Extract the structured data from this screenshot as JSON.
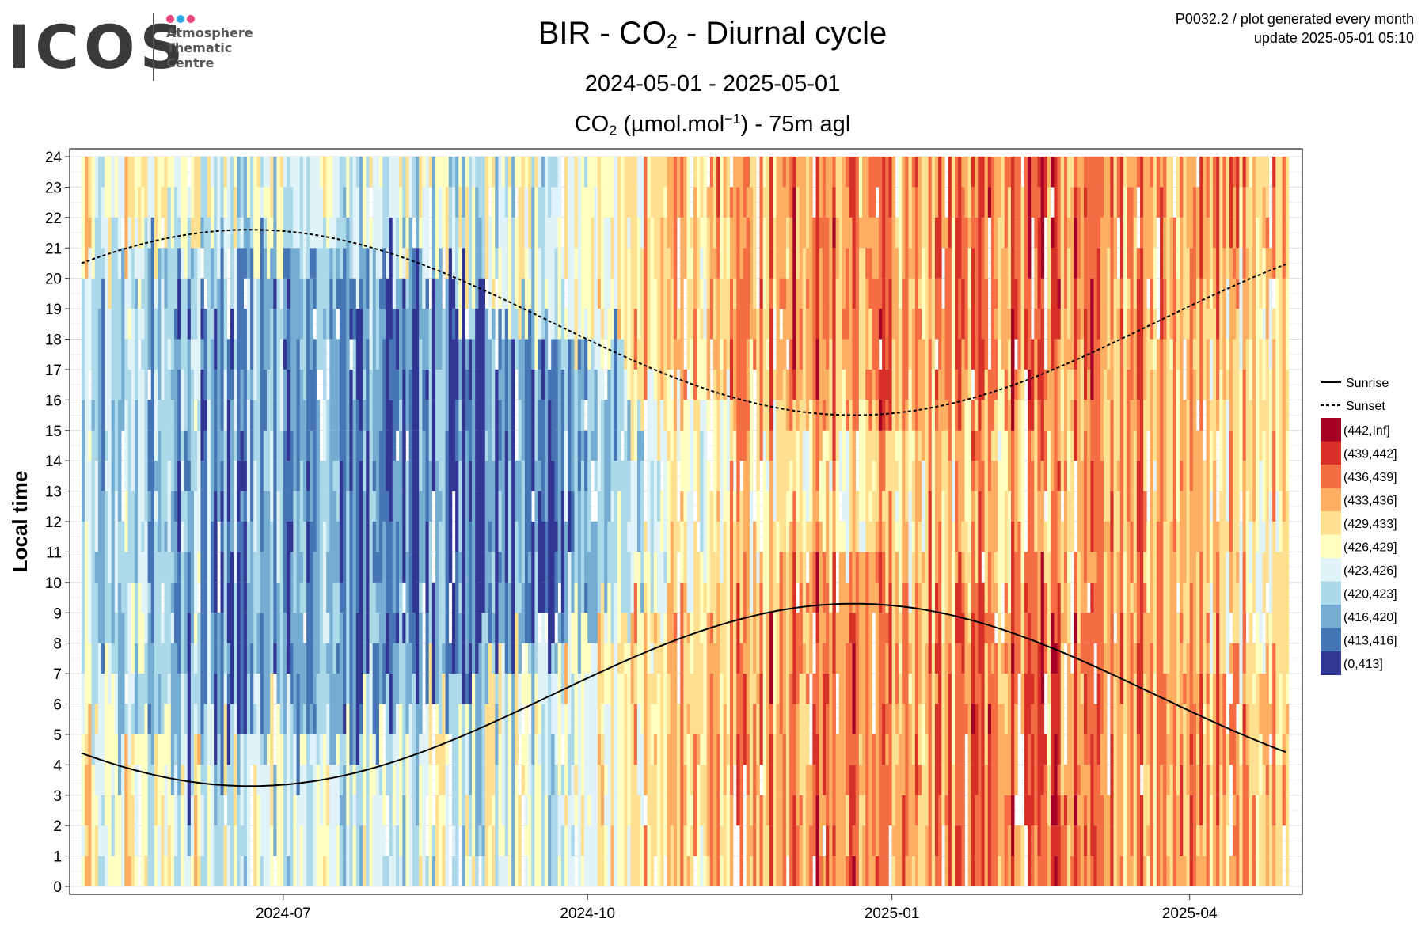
{
  "logo": {
    "word": "ICOS",
    "line1": "Atmosphere",
    "line2": "Thematic",
    "line3": "Centre",
    "dot_colors": [
      "#e6447a",
      "#2aa7e3",
      "#e6447a"
    ]
  },
  "meta": {
    "line1": "P0032.2 / plot generated every month",
    "line2": "update  2025-05-01 05:10"
  },
  "header": {
    "title_pre": "BIR - CO",
    "title_sub": "2",
    "title_post": " - Diurnal cycle",
    "date_range": "2024-05-01 - 2025-05-01",
    "unit_pre": "CO",
    "unit_sub": "2",
    "unit_mid": " (µmol.mol",
    "unit_sup": "−1",
    "unit_post": ") - 75m agl"
  },
  "chart_data": {
    "type": "heatmap",
    "x_start": "2024-05-01",
    "x_end": "2025-05-01",
    "x_ticks": [
      "2024-07",
      "2024-10",
      "2025-01",
      "2025-04"
    ],
    "ylabel": "Local time",
    "ylim": [
      0,
      24
    ],
    "y_ticks": [
      0,
      1,
      2,
      3,
      4,
      5,
      6,
      7,
      8,
      9,
      10,
      11,
      12,
      13,
      14,
      15,
      16,
      17,
      18,
      19,
      20,
      21,
      22,
      23,
      24
    ],
    "grid": true,
    "legend_position": "right",
    "bins": [
      {
        "label": "(442,Inf]",
        "color": "#a50026"
      },
      {
        "label": "(439,442]",
        "color": "#d73027"
      },
      {
        "label": "(436,439]",
        "color": "#f46d43"
      },
      {
        "label": "(433,436]",
        "color": "#fdae61"
      },
      {
        "label": "(429,433]",
        "color": "#fee090"
      },
      {
        "label": "(426,429]",
        "color": "#ffffbf"
      },
      {
        "label": "(423,426]",
        "color": "#e0f3f8"
      },
      {
        "label": "(420,423]",
        "color": "#abd9e9"
      },
      {
        "label": "(416,420]",
        "color": "#74add1"
      },
      {
        "label": "(413,416]",
        "color": "#4575b4"
      },
      {
        "label": "(0,413]",
        "color": "#313695"
      }
    ],
    "approx_bin_index_by_month_night_day": {
      "months": [
        "2024-05",
        "2024-06",
        "2024-07",
        "2024-08",
        "2024-09",
        "2024-10",
        "2024-11",
        "2024-12",
        "2025-01",
        "2025-02",
        "2025-03",
        "2025-04"
      ],
      "night": [
        5,
        6,
        6,
        6,
        6,
        4,
        3,
        2,
        3,
        2,
        3,
        3
      ],
      "day": [
        7,
        8,
        8,
        9,
        9,
        6,
        4,
        4,
        4,
        3,
        3,
        4
      ]
    },
    "sunrise": {
      "label": "Sunrise",
      "min": {
        "date": "2024-06-21",
        "value": 3.3
      },
      "max": {
        "date": "2024-12-25",
        "value": 9.3
      }
    },
    "sunset": {
      "label": "Sunset",
      "min": {
        "date": "2024-12-15",
        "value": 15.5
      },
      "max": {
        "date": "2024-06-21",
        "value": 21.6
      }
    }
  }
}
